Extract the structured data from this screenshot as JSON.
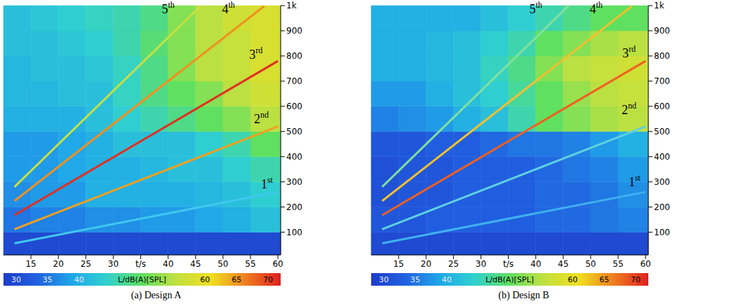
{
  "chart_data": [
    {
      "type": "heatmap",
      "caption": "(a) Design A",
      "xlim": [
        10,
        60.5
      ],
      "xticks": [
        15,
        20,
        25,
        30,
        {
          "value": 35,
          "label": "t/s"
        },
        40,
        45,
        50,
        55,
        60
      ],
      "ylim": [
        10,
        1000
      ],
      "yticks": [
        100,
        200,
        300,
        400,
        500,
        600,
        700,
        800,
        900,
        {
          "value": 1000,
          "label": "1k"
        }
      ],
      "heatmap": {
        "x_edges": [
          10,
          15,
          20,
          25,
          30,
          35,
          40,
          45,
          50,
          55,
          60.5
        ],
        "y_edges": [
          10,
          100,
          200,
          300,
          400,
          500,
          600,
          700,
          800,
          900,
          1000
        ],
        "values": [
          [
            30,
            30,
            30,
            30,
            30,
            30,
            30,
            30,
            30,
            30
          ],
          [
            35,
            36,
            36,
            37,
            37,
            38,
            38,
            39,
            40,
            42
          ],
          [
            37,
            38,
            38,
            40,
            40,
            40,
            40,
            41,
            42,
            44
          ],
          [
            38,
            38,
            39,
            40,
            40,
            41,
            42,
            42,
            44,
            46
          ],
          [
            38,
            38,
            39,
            40,
            42,
            42,
            42,
            44,
            46,
            50
          ],
          [
            40,
            40,
            40,
            42,
            44,
            46,
            48,
            50,
            52,
            55
          ],
          [
            41,
            41,
            42,
            42,
            45,
            48,
            50,
            52,
            55,
            57
          ],
          [
            41,
            42,
            42,
            43,
            45,
            48,
            52,
            55,
            56,
            58
          ],
          [
            42,
            42,
            43,
            44,
            46,
            49,
            52,
            55,
            56,
            58
          ],
          [
            42,
            43,
            44,
            45,
            46,
            48,
            52,
            55,
            57,
            58
          ]
        ]
      },
      "colorbar": {
        "range": [
          28,
          72
        ],
        "ticks": [
          30,
          35,
          40,
          {
            "value": 50,
            "label": "L/dB(A)[SPL]"
          },
          60,
          65,
          70
        ]
      },
      "series": [
        {
          "name": "1st",
          "color": "#40c8f0",
          "x": [
            12,
            60
          ],
          "values": [
            56,
            260
          ],
          "label_at": [
            58,
            285
          ]
        },
        {
          "name": "2nd",
          "color": "#f0a020",
          "x": [
            12,
            60
          ],
          "values": [
            112,
            520
          ],
          "label_at": [
            57,
            545
          ]
        },
        {
          "name": "3rd",
          "color": "#e03020",
          "x": [
            12,
            60
          ],
          "values": [
            168,
            780
          ],
          "label_at": [
            56,
            800
          ]
        },
        {
          "name": "4th",
          "color": "#f09020",
          "x": [
            12,
            57.5
          ],
          "values": [
            224,
            998
          ],
          "label_at": [
            51,
            980
          ]
        },
        {
          "name": "5th",
          "color": "#c8e040",
          "x": [
            12,
            46
          ],
          "values": [
            280,
            1000
          ],
          "label_at": [
            40,
            980
          ]
        }
      ]
    },
    {
      "type": "heatmap",
      "caption": "(b) Design B",
      "xlim": [
        10,
        60.5
      ],
      "xticks": [
        15,
        20,
        25,
        30,
        {
          "value": 35,
          "label": "t/s"
        },
        40,
        45,
        50,
        55,
        60
      ],
      "ylim": [
        10,
        1000
      ],
      "yticks": [
        100,
        200,
        300,
        400,
        500,
        600,
        700,
        800,
        900,
        {
          "value": 1000,
          "label": "1k"
        }
      ],
      "heatmap": {
        "x_edges": [
          10,
          15,
          20,
          25,
          30,
          35,
          40,
          45,
          50,
          55,
          60.5
        ],
        "y_edges": [
          10,
          100,
          200,
          300,
          400,
          500,
          600,
          700,
          800,
          900,
          1000
        ],
        "values": [
          [
            30,
            30,
            30,
            30,
            30,
            30,
            30,
            30,
            30,
            30
          ],
          [
            32,
            32,
            33,
            33,
            33,
            33,
            34,
            34,
            35,
            36
          ],
          [
            31,
            32,
            32,
            33,
            33,
            33,
            34,
            34,
            35,
            37
          ],
          [
            31,
            32,
            32,
            33,
            33,
            33,
            34,
            35,
            36,
            38
          ],
          [
            32,
            32,
            33,
            33,
            34,
            35,
            35,
            36,
            38,
            40
          ],
          [
            36,
            37,
            38,
            40,
            42,
            46,
            50,
            52,
            54,
            55
          ],
          [
            38,
            38,
            40,
            42,
            44,
            47,
            50,
            53,
            55,
            56
          ],
          [
            40,
            40,
            41,
            42,
            45,
            48,
            52,
            55,
            56,
            57
          ],
          [
            40,
            40,
            41,
            42,
            44,
            46,
            50,
            52,
            54,
            55
          ],
          [
            40,
            40,
            40,
            40,
            42,
            44,
            46,
            48,
            50,
            50
          ]
        ]
      },
      "colorbar": {
        "range": [
          28,
          72
        ],
        "ticks": [
          30,
          35,
          40,
          {
            "value": 50,
            "label": "L/dB(A)[SPL]"
          },
          60,
          65,
          70
        ]
      },
      "series": [
        {
          "name": "1st",
          "color": "#40b0f0",
          "x": [
            12,
            60
          ],
          "values": [
            56,
            260
          ],
          "label_at": [
            58,
            295
          ]
        },
        {
          "name": "2nd",
          "color": "#60d0e0",
          "x": [
            12,
            60
          ],
          "values": [
            112,
            520
          ],
          "label_at": [
            57,
            580
          ]
        },
        {
          "name": "3rd",
          "color": "#f06020",
          "x": [
            12,
            60
          ],
          "values": [
            168,
            780
          ],
          "label_at": [
            57,
            805
          ]
        },
        {
          "name": "4th",
          "color": "#f0c030",
          "x": [
            12,
            57.5
          ],
          "values": [
            224,
            998
          ],
          "label_at": [
            51,
            980
          ]
        },
        {
          "name": "5th",
          "color": "#80e0a0",
          "x": [
            12,
            46
          ],
          "values": [
            280,
            1000
          ],
          "label_at": [
            40,
            980
          ]
        }
      ]
    }
  ]
}
